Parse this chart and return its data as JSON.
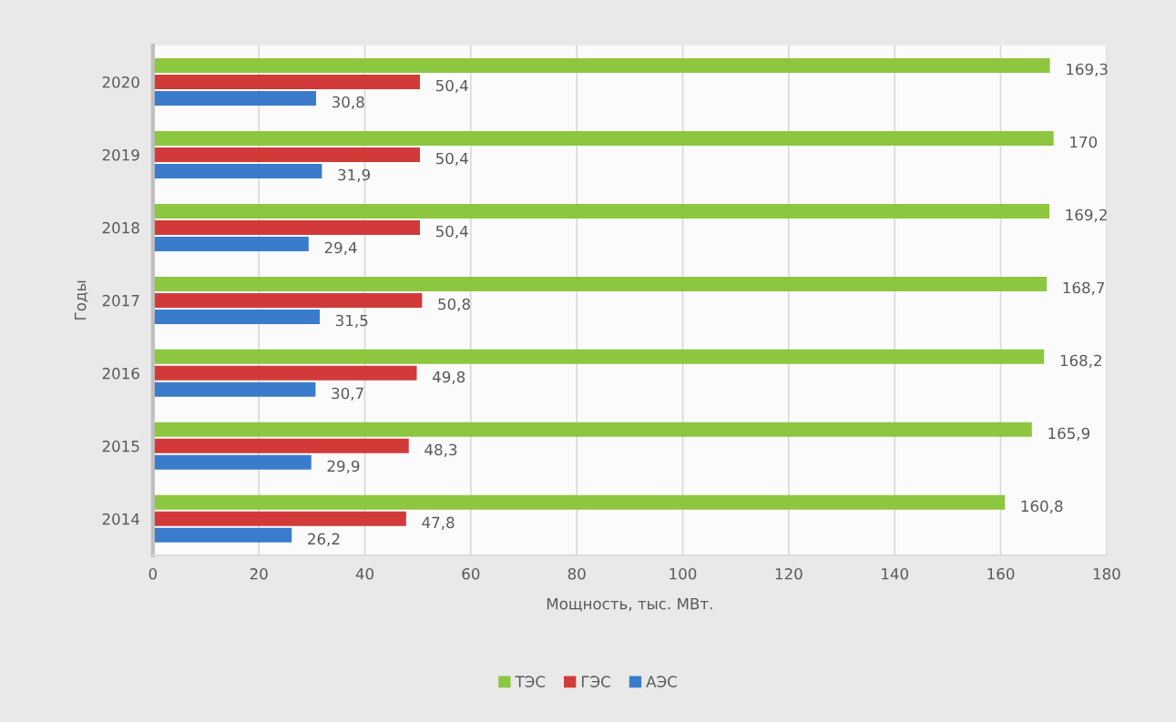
{
  "chart_data": {
    "type": "bar",
    "orientation": "horizontal",
    "xlabel": "Мощность, тыс. МВт.",
    "ylabel": "Годы",
    "categories": [
      "2020",
      "2019",
      "2018",
      "2017",
      "2016",
      "2015",
      "2014"
    ],
    "series": [
      {
        "name": "ТЭС",
        "color": "#8dc63f",
        "values": [
          169.3,
          170,
          169.2,
          168.7,
          168.2,
          165.9,
          160.8
        ],
        "value_labels": [
          "169,3",
          "170",
          "169,2",
          "168,7",
          "168,2",
          "165,9",
          "160,8"
        ]
      },
      {
        "name": "ГЭС",
        "color": "#d23a3a",
        "values": [
          50.4,
          50.4,
          50.4,
          50.8,
          49.8,
          48.3,
          47.8
        ],
        "value_labels": [
          "50,4",
          "50,4",
          "50,4",
          "50,8",
          "49,8",
          "48,3",
          "47,8"
        ]
      },
      {
        "name": "АЭС",
        "color": "#3b7bcc",
        "values": [
          30.8,
          31.9,
          29.4,
          31.5,
          30.7,
          29.9,
          26.2
        ],
        "value_labels": [
          "30,8",
          "31,9",
          "29,4",
          "31,5",
          "30,7",
          "29,9",
          "26,2"
        ]
      }
    ],
    "xlim": [
      0,
      180
    ],
    "xticks": [
      0,
      20,
      40,
      60,
      80,
      100,
      120,
      140,
      160,
      180
    ],
    "grid": "x",
    "legend": "bottom"
  }
}
